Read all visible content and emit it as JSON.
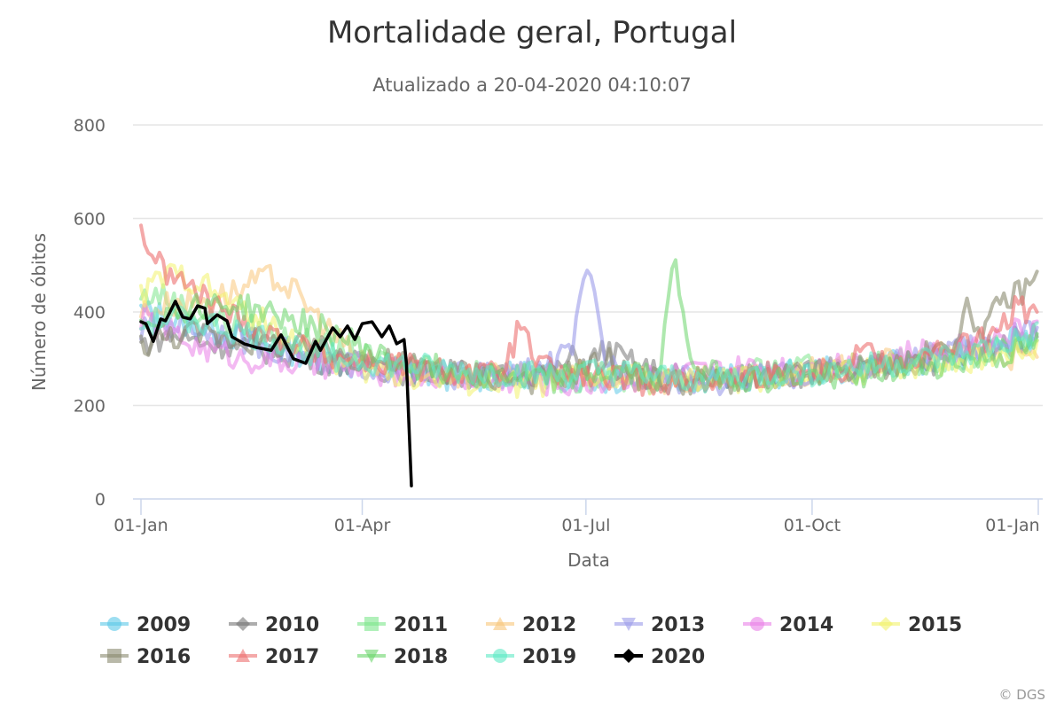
{
  "chart_data": {
    "type": "line",
    "title": "Mortalidade geral, Portugal",
    "subtitle": "Atualizado a 20-04-2020 04:10:07",
    "xlabel": "Data",
    "ylabel": "Número de óbitos",
    "ylim": [
      0,
      800
    ],
    "yticks": [
      "0",
      "200",
      "400",
      "600",
      "800"
    ],
    "xlim_days": [
      0,
      365
    ],
    "xticks": [
      {
        "label": "01-Jan",
        "day": 0
      },
      {
        "label": "01-Apr",
        "day": 90
      },
      {
        "label": "01-Jul",
        "day": 181
      },
      {
        "label": "01-Oct",
        "day": 273
      },
      {
        "label": "01-Jan",
        "day": 365
      }
    ],
    "grid": true,
    "legend_position": "bottom",
    "x_step_days": 7,
    "series": [
      {
        "name": "2009",
        "color": "#5cc8e8",
        "marker": "circle",
        "opacity": 0.55,
        "values": [
          400,
          395,
          380,
          370,
          360,
          350,
          345,
          330,
          320,
          315,
          300,
          295,
          285,
          280,
          275,
          270,
          268,
          265,
          262,
          260,
          258,
          262,
          265,
          270,
          262,
          258,
          256,
          252,
          255,
          250,
          252,
          255,
          260,
          262,
          258,
          260,
          262,
          265,
          268,
          270,
          275,
          272,
          280,
          285,
          288,
          292,
          300,
          305,
          310,
          320,
          330,
          340,
          345
        ]
      },
      {
        "name": "2010",
        "color": "#777777",
        "marker": "diamond",
        "opacity": 0.55,
        "values": [
          330,
          345,
          350,
          340,
          335,
          330,
          325,
          320,
          315,
          310,
          300,
          295,
          290,
          285,
          280,
          275,
          272,
          270,
          268,
          265,
          262,
          260,
          268,
          272,
          265,
          300,
          290,
          320,
          300,
          280,
          270,
          262,
          258,
          255,
          255,
          258,
          262,
          265,
          268,
          270,
          272,
          275,
          280,
          282,
          285,
          290,
          295,
          300,
          305,
          320,
          330,
          340,
          350
        ]
      },
      {
        "name": "2011",
        "color": "#7de68c",
        "marker": "square",
        "opacity": 0.55,
        "values": [
          430,
          440,
          420,
          400,
          390,
          380,
          370,
          360,
          350,
          340,
          330,
          320,
          310,
          300,
          295,
          290,
          285,
          280,
          275,
          270,
          268,
          266,
          265,
          262,
          260,
          258,
          260,
          262,
          258,
          255,
          255,
          258,
          260,
          262,
          265,
          268,
          270,
          272,
          275,
          278,
          280,
          285,
          288,
          290,
          292,
          295,
          300,
          305,
          310,
          315,
          320,
          330,
          340
        ]
      },
      {
        "name": "2012",
        "color": "#f9c77a",
        "marker": "triangle",
        "opacity": 0.55,
        "values": [
          400,
          410,
          420,
          420,
          430,
          440,
          450,
          470,
          470,
          440,
          400,
          360,
          320,
          300,
          290,
          280,
          275,
          270,
          268,
          266,
          262,
          260,
          258,
          262,
          265,
          270,
          265,
          260,
          258,
          255,
          252,
          250,
          255,
          258,
          260,
          262,
          265,
          268,
          270,
          272,
          275,
          280,
          285,
          290,
          295,
          300,
          305,
          310,
          315,
          320,
          310,
          300,
          300
        ]
      },
      {
        "name": "2013",
        "color": "#9b9bea",
        "marker": "triangle-down",
        "opacity": 0.6,
        "values": [
          360,
          370,
          375,
          370,
          360,
          350,
          340,
          330,
          320,
          310,
          300,
          295,
          290,
          285,
          280,
          275,
          270,
          268,
          266,
          264,
          262,
          265,
          268,
          275,
          290,
          320,
          490,
          300,
          275,
          268,
          262,
          258,
          255,
          252,
          252,
          255,
          258,
          262,
          265,
          268,
          270,
          275,
          280,
          285,
          290,
          300,
          305,
          310,
          320,
          330,
          340,
          350,
          360
        ]
      },
      {
        "name": "2014",
        "color": "#ea80e8",
        "marker": "circle",
        "opacity": 0.55,
        "values": [
          390,
          370,
          350,
          330,
          320,
          310,
          300,
          300,
          295,
          290,
          285,
          280,
          278,
          275,
          272,
          270,
          268,
          265,
          262,
          260,
          258,
          256,
          255,
          252,
          250,
          245,
          250,
          255,
          258,
          260,
          262,
          265,
          268,
          270,
          272,
          275,
          278,
          280,
          282,
          285,
          288,
          292,
          295,
          300,
          305,
          310,
          315,
          320,
          330,
          340,
          350,
          360,
          370
        ]
      },
      {
        "name": "2015",
        "color": "#f2f26a",
        "marker": "diamond",
        "opacity": 0.55,
        "values": [
          430,
          470,
          480,
          470,
          450,
          420,
          400,
          380,
          360,
          340,
          320,
          300,
          285,
          275,
          270,
          265,
          262,
          258,
          255,
          252,
          250,
          248,
          246,
          245,
          250,
          255,
          260,
          262,
          258,
          255,
          252,
          250,
          248,
          250,
          252,
          255,
          258,
          260,
          262,
          265,
          268,
          270,
          275,
          280,
          285,
          288,
          292,
          296,
          300,
          305,
          310,
          320,
          325
        ]
      },
      {
        "name": "2016",
        "color": "#8a8a70",
        "marker": "square",
        "opacity": 0.6,
        "values": [
          330,
          340,
          350,
          355,
          350,
          345,
          340,
          335,
          330,
          325,
          320,
          315,
          305,
          300,
          295,
          290,
          285,
          280,
          275,
          270,
          265,
          262,
          258,
          255,
          262,
          270,
          280,
          300,
          275,
          260,
          255,
          252,
          250,
          250,
          252,
          255,
          258,
          262,
          265,
          268,
          270,
          275,
          280,
          285,
          290,
          300,
          310,
          330,
          400,
          360,
          420,
          440,
          470
        ]
      },
      {
        "name": "2017",
        "color": "#ec7070",
        "marker": "triangle",
        "opacity": 0.6,
        "values": [
          575,
          500,
          470,
          450,
          420,
          400,
          380,
          360,
          345,
          330,
          315,
          305,
          300,
          295,
          290,
          285,
          280,
          276,
          272,
          268,
          265,
          262,
          370,
          290,
          270,
          265,
          262,
          258,
          255,
          252,
          250,
          250,
          252,
          255,
          258,
          262,
          265,
          268,
          270,
          272,
          275,
          280,
          335,
          290,
          295,
          300,
          310,
          320,
          330,
          340,
          360,
          420,
          380
        ]
      },
      {
        "name": "2018",
        "color": "#6bd66b",
        "marker": "triangle-down",
        "opacity": 0.55,
        "values": [
          380,
          390,
          400,
          410,
          420,
          415,
          410,
          400,
          390,
          380,
          370,
          360,
          340,
          320,
          300,
          290,
          285,
          280,
          275,
          270,
          268,
          265,
          262,
          260,
          258,
          262,
          265,
          268,
          270,
          265,
          260,
          505,
          300,
          270,
          262,
          258,
          256,
          255,
          258,
          262,
          265,
          268,
          270,
          272,
          275,
          280,
          285,
          290,
          295,
          300,
          305,
          315,
          330
        ]
      },
      {
        "name": "2019",
        "color": "#5eeac5",
        "marker": "circle",
        "opacity": 0.55,
        "values": [
          370,
          380,
          390,
          385,
          375,
          365,
          355,
          345,
          335,
          325,
          315,
          305,
          300,
          295,
          290,
          285,
          282,
          278,
          275,
          272,
          270,
          268,
          266,
          264,
          262,
          266,
          270,
          272,
          268,
          264,
          260,
          258,
          256,
          258,
          260,
          262,
          265,
          268,
          270,
          272,
          275,
          278,
          280,
          285,
          290,
          295,
          300,
          305,
          310,
          320,
          330,
          340,
          350
        ]
      },
      {
        "name": "2020",
        "color": "#000000",
        "marker": "diamond",
        "opacity": 1,
        "days": [
          0,
          2,
          5,
          8,
          10,
          14,
          17,
          20,
          23,
          26,
          27,
          31,
          35,
          37,
          42,
          47,
          53,
          57,
          62,
          67,
          71,
          73,
          78,
          81,
          84,
          87,
          90,
          94,
          98,
          101,
          104,
          107,
          108,
          110
        ],
        "values": [
          379,
          375,
          337,
          385,
          381,
          423,
          389,
          385,
          413,
          408,
          375,
          394,
          381,
          347,
          332,
          324,
          318,
          351,
          300,
          290,
          337,
          318,
          366,
          347,
          370,
          341,
          375,
          379,
          347,
          370,
          332,
          341,
          290,
          28
        ]
      }
    ]
  },
  "credit": "© DGS"
}
